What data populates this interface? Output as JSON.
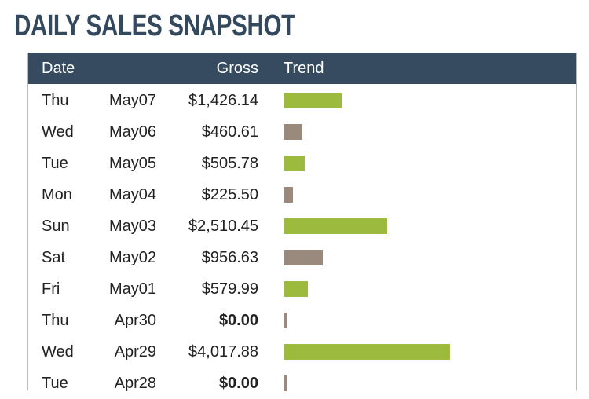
{
  "header": {
    "title": "DAILY SALES SNAPSHOT"
  },
  "table": {
    "columns": [
      "Date",
      "Gross",
      "Trend"
    ],
    "rows": [
      {
        "day": "Thu",
        "date": "May07",
        "gross": "$1,426.14",
        "value": 1426.14,
        "color": "#9cba3e"
      },
      {
        "day": "Wed",
        "date": "May06",
        "gross": "$460.61",
        "value": 460.61,
        "color": "#9a8a7e"
      },
      {
        "day": "Tue",
        "date": "May05",
        "gross": "$505.78",
        "value": 505.78,
        "color": "#9cba3e"
      },
      {
        "day": "Mon",
        "date": "May04",
        "gross": "$225.50",
        "value": 225.5,
        "color": "#9a8a7e"
      },
      {
        "day": "Sun",
        "date": "May03",
        "gross": "$2,510.45",
        "value": 2510.45,
        "color": "#9cba3e"
      },
      {
        "day": "Sat",
        "date": "May02",
        "gross": "$956.63",
        "value": 956.63,
        "color": "#9a8a7e"
      },
      {
        "day": "Fri",
        "date": "May01",
        "gross": "$579.99",
        "value": 579.99,
        "color": "#9cba3e"
      },
      {
        "day": "Thu",
        "date": "Apr30",
        "gross": "$0.00",
        "value": 0,
        "color": "#9a8a7e",
        "bold": true
      },
      {
        "day": "Wed",
        "date": "Apr29",
        "gross": "$4,017.88",
        "value": 4017.88,
        "color": "#9cba3e"
      },
      {
        "day": "Tue",
        "date": "Apr28",
        "gross": "$0.00",
        "value": 0,
        "color": "#9a8a7e",
        "bold": true
      }
    ]
  }
}
